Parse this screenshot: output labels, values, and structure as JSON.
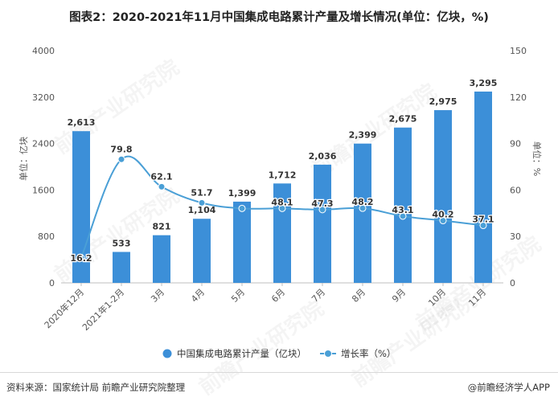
{
  "header": {
    "title": "图表2：2020-2021年11月中国集成电路累计产量及增长情况(单位：亿块，%)"
  },
  "footer": {
    "source": "资料来源：国家统计局 前瞻产业研究院整理",
    "brand": "@前瞻经济学人APP"
  },
  "watermark": "前瞻产业研究院",
  "chart_data": {
    "type": "bar",
    "categories": [
      "2020年12月",
      "2021年1-2月",
      "3月",
      "4月",
      "5月",
      "6月",
      "7月",
      "8月",
      "9月",
      "10月",
      "11月"
    ],
    "series": [
      {
        "name": "中国集成电路累计产量（亿块）",
        "type": "bar",
        "axis": "left",
        "values": [
          2613,
          533,
          821,
          1104,
          1399,
          1712,
          2036,
          2399,
          2675,
          2975,
          3295
        ],
        "labels": [
          "2,613",
          "533",
          "821",
          "1,104",
          "1,399",
          "1,712",
          "2,036",
          "2,399",
          "2,675",
          "2,975",
          "3,295"
        ],
        "color": "#3c8fd8"
      },
      {
        "name": "增长率（%）",
        "type": "line",
        "axis": "right",
        "values": [
          16.2,
          79.8,
          62.1,
          51.7,
          48.1,
          48.1,
          47.3,
          48.2,
          43.1,
          40.2,
          37.1
        ],
        "labels": [
          "16.2",
          "79.8",
          "62.1",
          "51.7",
          "",
          "48.1",
          "47.3",
          "48.2",
          "43.1",
          "40.2",
          "37.1"
        ],
        "color": "#4a9fd6"
      }
    ],
    "ylabel": "单位：亿块",
    "ylabel_right": "单位：%",
    "ylim": [
      0,
      4000
    ],
    "yticks": [
      "0",
      "800",
      "1600",
      "2400",
      "3200",
      "4000"
    ],
    "ylim_right": [
      0,
      150
    ],
    "yticks_right": [
      "0",
      "30",
      "60",
      "90",
      "120",
      "150"
    ],
    "legend_position": "bottom",
    "grid": false
  }
}
